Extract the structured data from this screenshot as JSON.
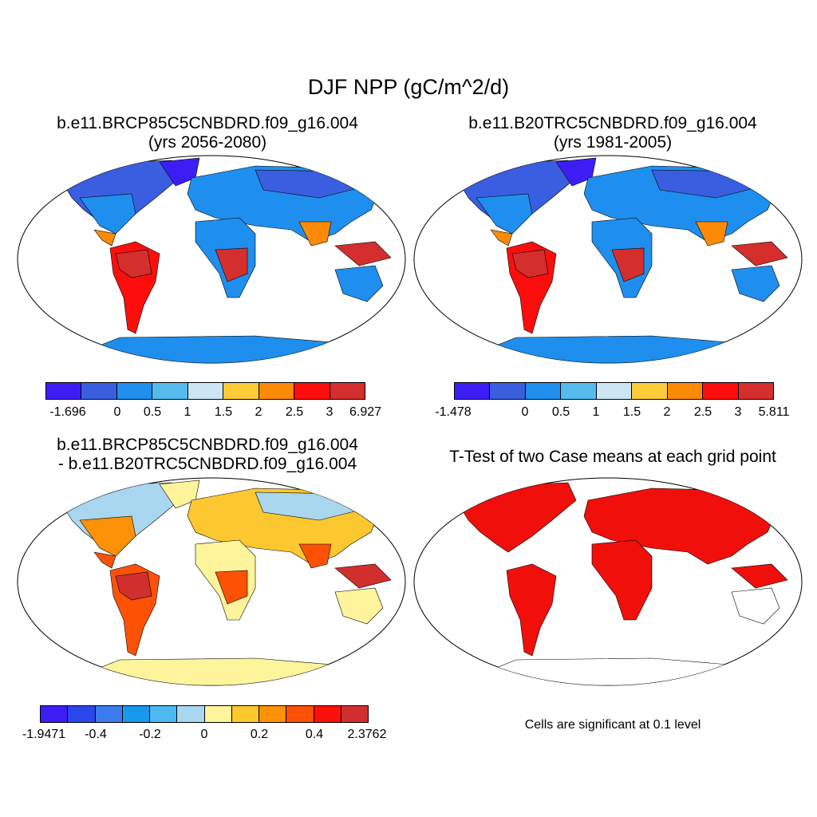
{
  "title": "DJF NPP (gC/m^2/d)",
  "panels": [
    {
      "line1": "b.e11.BRCP85C5CNBDRD.f09_g16.004",
      "line2": "(yrs 2056-2080)"
    },
    {
      "line1": "b.e11.B20TRC5CNBDRD.f09_g16.004",
      "line2": "(yrs 1981-2005)"
    },
    {
      "line1": "b.e11.BRCP85C5CNBDRD.f09_g16.004",
      "line2": "- b.e11.B20TRC5CNBDRD.f09_g16.004"
    },
    {
      "line1": "T-Test of two Case means at each grid point"
    }
  ],
  "colorbars": [
    {
      "colors": [
        "#3c1ef5",
        "#3a5ee0",
        "#1e8fee",
        "#55bbee",
        "#cde6f6",
        "#fccc38",
        "#fd8a06",
        "#fd0e0c",
        "#d42e2d"
      ],
      "labels": [
        "-1.696",
        "0",
        "0.5",
        "1",
        "1.5",
        "2",
        "2.5",
        "3",
        "6.927"
      ]
    },
    {
      "colors": [
        "#3c1ef5",
        "#3a5ee0",
        "#1e8fee",
        "#55bbee",
        "#cde6f6",
        "#fccc38",
        "#fd8a06",
        "#fd0e0c",
        "#d42e2d"
      ],
      "labels": [
        "-1.478",
        "0",
        "0.5",
        "1",
        "1.5",
        "2",
        "2.5",
        "3",
        "5.811"
      ]
    },
    {
      "colors": [
        "#3c1ef5",
        "#2a48ea",
        "#3d7cec",
        "#1899ee",
        "#4cbaf0",
        "#a9d7ef",
        "#fdf49b",
        "#fdc72f",
        "#fd9107",
        "#fd5205",
        "#fd0f0c",
        "#d12f2d"
      ],
      "labels": [
        "-1.9471",
        "-0.4",
        "-0.2",
        "0",
        "0.2",
        "0.4",
        "2.3762"
      ]
    }
  ],
  "note": "Cells are significant at 0.1 level",
  "colors": {
    "land_fill": "#cfe4f7",
    "diff_land_fill": "#fbf1a0",
    "sig_fill": "#f10f0c"
  }
}
